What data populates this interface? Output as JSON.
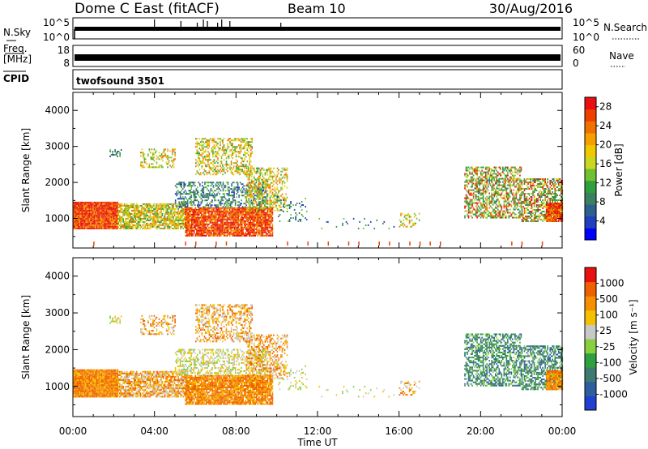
{
  "header": {
    "title": "Dome C East (fitACF)",
    "beam": "Beam 10",
    "date": "30/Aug/2016"
  },
  "nsky": {
    "label": "N.Sky",
    "tick_top": "10^5",
    "tick_bottom": "10^0",
    "right_tick_top": "10^5",
    "right_tick_bottom": "10^0",
    "right_label": "N.Search"
  },
  "freq": {
    "label_line1": "Freq.",
    "label_line2": "[MHz]",
    "tick_top": "18",
    "tick_bottom": "8",
    "right_tick_top": "60",
    "right_tick_bottom": "0",
    "right_label": "Nave"
  },
  "cpid": {
    "label": "CPID",
    "program": "twofsound 3501"
  },
  "colors": {
    "frame": "#000000",
    "trace": "#000000"
  },
  "chart_data": [
    {
      "type": "heatmap",
      "name": "power",
      "ylabel": "Slant Range [km]",
      "xlabel": "",
      "x_ticks": [
        "00:00",
        "04:00",
        "08:00",
        "12:00",
        "16:00",
        "20:00",
        "00:00"
      ],
      "xlim_hours": [
        0,
        24
      ],
      "ylim_km": [
        180,
        4500
      ],
      "y_ticks": [
        1000,
        2000,
        3000,
        4000
      ],
      "colorbar": {
        "label": "Power [dB]",
        "tick_labels": [
          "4",
          "8",
          "12",
          "16",
          "20",
          "24",
          "28"
        ],
        "range": [
          0,
          30
        ],
        "colors": [
          "#0000ff",
          "#1f3fbf",
          "#2d5f8f",
          "#3d8060",
          "#2fa040",
          "#70c030",
          "#c8d820",
          "#f0c800",
          "#f5a000",
          "#f07000",
          "#f04000",
          "#e81010"
        ]
      }
    },
    {
      "type": "heatmap",
      "name": "velocity",
      "ylabel": "Slant Range [km]",
      "xlabel": "Time UT",
      "x_ticks": [
        "00:00",
        "04:00",
        "08:00",
        "12:00",
        "16:00",
        "20:00",
        "00:00"
      ],
      "xlim_hours": [
        0,
        24
      ],
      "ylim_km": [
        180,
        4500
      ],
      "y_ticks": [
        1000,
        2000,
        3000,
        4000
      ],
      "colorbar": {
        "label": "Velocity [m s⁻¹]",
        "tick_labels": [
          "1000",
          "500",
          "100",
          "25",
          "-25",
          "-100",
          "-500",
          "-1000"
        ],
        "colors": [
          "#2040d0",
          "#2d5f9f",
          "#3d7a70",
          "#2fa040",
          "#88d040",
          "#c8c8c8",
          "#f5c000",
          "#f59000",
          "#f06000",
          "#e81010"
        ]
      }
    }
  ]
}
